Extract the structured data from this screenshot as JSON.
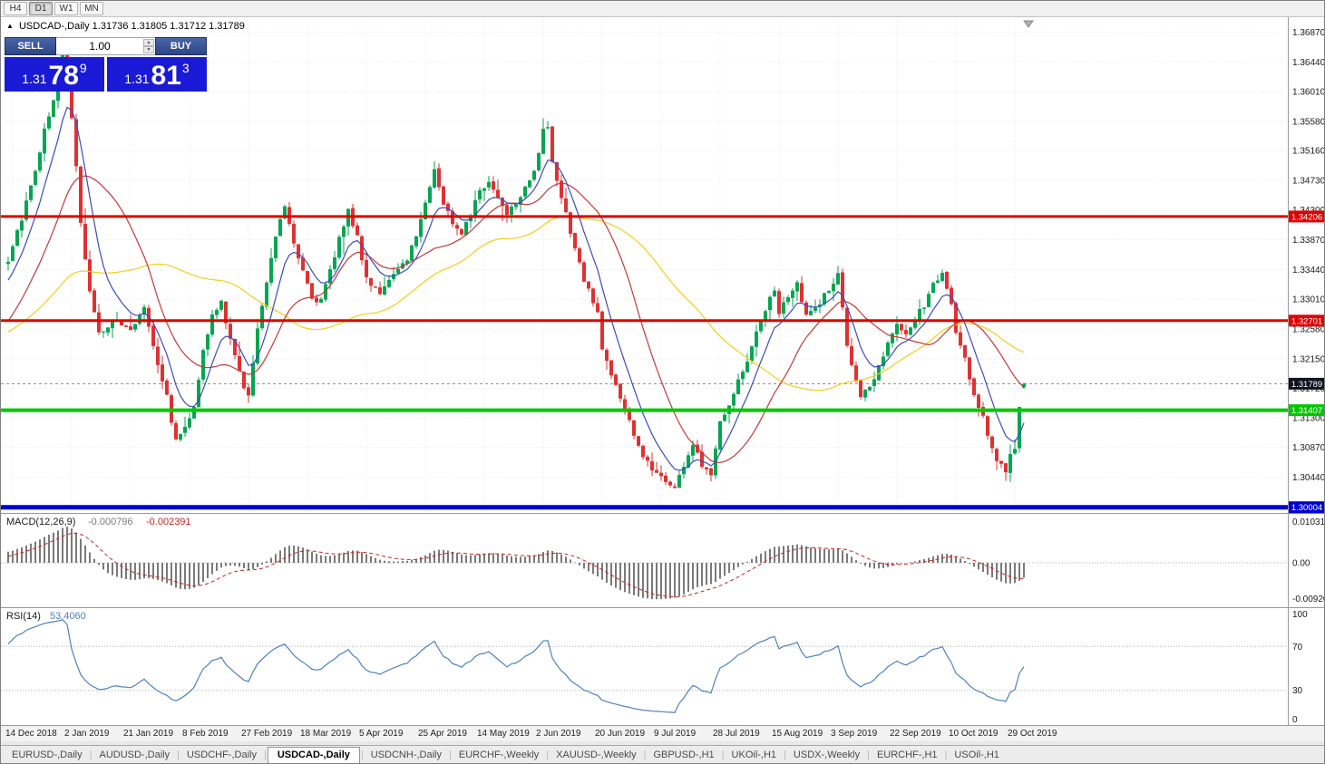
{
  "toolbar": {
    "timeframes": [
      "H4",
      "D1",
      "W1",
      "MN"
    ],
    "active": "D1"
  },
  "chart": {
    "collapse_icon": "▲",
    "title": "USDCAD-,Daily",
    "ohlc": "1.31736 1.31805 1.31712 1.31789"
  },
  "trade_panel": {
    "sell_label": "SELL",
    "buy_label": "BUY",
    "volume": "1.00",
    "bid_prefix": "1.31",
    "bid_big": "78",
    "bid_sup": "9",
    "ask_prefix": "1.31",
    "ask_big": "81",
    "ask_sup": "3"
  },
  "icons": {
    "spinner_up": "▲",
    "spinner_down": "▼",
    "tab_separator": "|"
  },
  "price_axis": {
    "labels": [
      "1.36870",
      "1.36440",
      "1.36010",
      "1.35580",
      "1.35160",
      "1.34730",
      "1.34300",
      "1.33870",
      "1.33440",
      "1.33010",
      "1.32580",
      "1.32150",
      "1.31720",
      "1.31300",
      "1.30870",
      "1.30440",
      "1.30010"
    ]
  },
  "date_axis": {
    "labels": [
      "14 Dec 2018",
      "2 Jan 2019",
      "21 Jan 2019",
      "8 Feb 2019",
      "27 Feb 2019",
      "18 Mar 2019",
      "5 Apr 2019",
      "25 Apr 2019",
      "14 May 2019",
      "2 Jun 2019",
      "20 Jun 2019",
      "9 Jul 2019",
      "28 Jul 2019",
      "15 Aug 2019",
      "3 Sep 2019",
      "22 Sep 2019",
      "10 Oct 2019",
      "29 Oct 2019"
    ]
  },
  "indicators": {
    "macd": {
      "name": "MACD(12,26,9)",
      "value_main": "-0.000796",
      "value_signal": "-0.002391",
      "scale_top": "0.0103111",
      "scale_mid": "0.00",
      "scale_bottom": "-0.0092031"
    },
    "rsi": {
      "name": "RSI(14)",
      "value": "53.4060",
      "scale": [
        "100",
        "70",
        "30",
        "0"
      ]
    }
  },
  "tabs": {
    "active_index": 3,
    "items": [
      "EURUSD-,Daily",
      "AUDUSD-,Daily",
      "USDCHF-,Daily",
      "USDCAD-,Daily",
      "USDCNH-,Daily",
      "EURCHF-,Weekly",
      "XAUUSD-,Weekly",
      "GBPUSD-,H1",
      "UKOil-,H1",
      "USDX-,Weekly",
      "EURCHF-,H1",
      "USOil-,H1"
    ]
  },
  "colors": {
    "candle_up": "#00a651",
    "candle_down": "#e03131",
    "ma_fast": "#3b4cc0",
    "ma_mid": "#c43939",
    "ma_slow": "#f2cf1d",
    "macd_bars": "#7a7a7a",
    "macd_signal": "#cc2222",
    "rsi_line": "#4f81bd",
    "grid": "#e9e9e9",
    "axis_text": "#1a1a1a",
    "separator": "#9a9a9a",
    "current_line": "#8a8a8a"
  },
  "chart_data": {
    "type": "candlestick",
    "symbol": "USDCAD",
    "period": "Daily",
    "ohlc_last": {
      "open": 1.31736,
      "high": 1.31805,
      "low": 1.31712,
      "close": 1.31789
    },
    "ylim": [
      1.3,
      1.3706
    ],
    "candle_count": 225,
    "first_tick_index": 1,
    "candles_per_tick": 13,
    "current": {
      "price": 1.31789,
      "label": "1.31789",
      "bg": "#10131f"
    },
    "hlines": [
      {
        "price": 1.34206,
        "label": "1.34206",
        "color": "#e00000",
        "width": 3
      },
      {
        "price": 1.32701,
        "label": "1.32701",
        "color": "#e00000",
        "width": 3
      },
      {
        "price": 1.31407,
        "label": "1.31407",
        "color": "#00c800",
        "width": 4
      },
      {
        "price": 1.30004,
        "label": "1.30004",
        "color": "#0000cd",
        "width": 5
      }
    ],
    "ma_periods": {
      "fast": 8,
      "mid": 20,
      "slow": 50
    },
    "macd_scale": {
      "top": 0.0103111,
      "bottom": -0.0092031
    },
    "rsi_levels": [
      70,
      30
    ],
    "warmup_anchors": [
      [
        -30,
        1.329
      ],
      [
        -25,
        1.322
      ],
      [
        -20,
        1.317
      ],
      [
        -15,
        1.3205
      ],
      [
        -10,
        1.327
      ],
      [
        -5,
        1.332
      ]
    ],
    "price_anchors": [
      [
        0,
        1.336
      ],
      [
        3,
        1.342
      ],
      [
        6,
        1.349
      ],
      [
        9,
        1.357
      ],
      [
        11,
        1.3615
      ],
      [
        12,
        1.3652
      ],
      [
        13,
        1.364
      ],
      [
        14,
        1.356
      ],
      [
        15,
        1.3495
      ],
      [
        16,
        1.341
      ],
      [
        18,
        1.331
      ],
      [
        20,
        1.325
      ],
      [
        23,
        1.3272
      ],
      [
        27,
        1.3255
      ],
      [
        30,
        1.3292
      ],
      [
        33,
        1.321
      ],
      [
        35,
        1.316
      ],
      [
        37,
        1.3095
      ],
      [
        39,
        1.3118
      ],
      [
        41,
        1.315
      ],
      [
        43,
        1.3225
      ],
      [
        45,
        1.3275
      ],
      [
        47,
        1.3298
      ],
      [
        49,
        1.324
      ],
      [
        51,
        1.3195
      ],
      [
        53,
        1.316
      ],
      [
        55,
        1.3255
      ],
      [
        57,
        1.333
      ],
      [
        59,
        1.3395
      ],
      [
        61,
        1.3438
      ],
      [
        63,
        1.3385
      ],
      [
        65,
        1.3345
      ],
      [
        67,
        1.3305
      ],
      [
        69,
        1.3298
      ],
      [
        71,
        1.334
      ],
      [
        73,
        1.339
      ],
      [
        75,
        1.3432
      ],
      [
        77,
        1.3388
      ],
      [
        79,
        1.3332
      ],
      [
        82,
        1.3312
      ],
      [
        85,
        1.3332
      ],
      [
        88,
        1.3362
      ],
      [
        90,
        1.3392
      ],
      [
        92,
        1.3445
      ],
      [
        94,
        1.3487
      ],
      [
        96,
        1.344
      ],
      [
        98,
        1.3412
      ],
      [
        100,
        1.34
      ],
      [
        102,
        1.3426
      ],
      [
        104,
        1.3455
      ],
      [
        106,
        1.3472
      ],
      [
        108,
        1.3448
      ],
      [
        110,
        1.3428
      ],
      [
        112,
        1.3442
      ],
      [
        114,
        1.3465
      ],
      [
        116,
        1.3488
      ],
      [
        118,
        1.3542
      ],
      [
        119,
        1.3552
      ],
      [
        120,
        1.3495
      ],
      [
        122,
        1.3452
      ],
      [
        124,
        1.3395
      ],
      [
        126,
        1.335
      ],
      [
        128,
        1.3312
      ],
      [
        130,
        1.3282
      ],
      [
        131,
        1.3228
      ],
      [
        133,
        1.3195
      ],
      [
        135,
        1.3155
      ],
      [
        137,
        1.3125
      ],
      [
        139,
        1.3085
      ],
      [
        141,
        1.3065
      ],
      [
        143,
        1.305
      ],
      [
        145,
        1.304
      ],
      [
        147,
        1.3028
      ],
      [
        149,
        1.3062
      ],
      [
        151,
        1.309
      ],
      [
        153,
        1.3062
      ],
      [
        155,
        1.3052
      ],
      [
        157,
        1.3125
      ],
      [
        159,
        1.3152
      ],
      [
        161,
        1.3182
      ],
      [
        163,
        1.3215
      ],
      [
        165,
        1.3252
      ],
      [
        167,
        1.3288
      ],
      [
        169,
        1.3312
      ],
      [
        170,
        1.3285
      ],
      [
        172,
        1.3302
      ],
      [
        174,
        1.3322
      ],
      [
        176,
        1.3275
      ],
      [
        178,
        1.3288
      ],
      [
        180,
        1.3308
      ],
      [
        182,
        1.3322
      ],
      [
        183,
        1.3338
      ],
      [
        185,
        1.3235
      ],
      [
        187,
        1.318
      ],
      [
        188,
        1.3155
      ],
      [
        190,
        1.3175
      ],
      [
        192,
        1.3205
      ],
      [
        194,
        1.3242
      ],
      [
        196,
        1.3262
      ],
      [
        198,
        1.3245
      ],
      [
        200,
        1.3272
      ],
      [
        202,
        1.3292
      ],
      [
        204,
        1.3322
      ],
      [
        206,
        1.3338
      ],
      [
        208,
        1.3292
      ],
      [
        209,
        1.3252
      ],
      [
        211,
        1.3212
      ],
      [
        213,
        1.3165
      ],
      [
        215,
        1.313
      ],
      [
        217,
        1.3085
      ],
      [
        219,
        1.3058
      ],
      [
        220,
        1.3048
      ],
      [
        221,
        1.3072
      ],
      [
        222,
        1.3088
      ],
      [
        223,
        1.3142
      ],
      [
        224,
        1.31789
      ]
    ]
  }
}
